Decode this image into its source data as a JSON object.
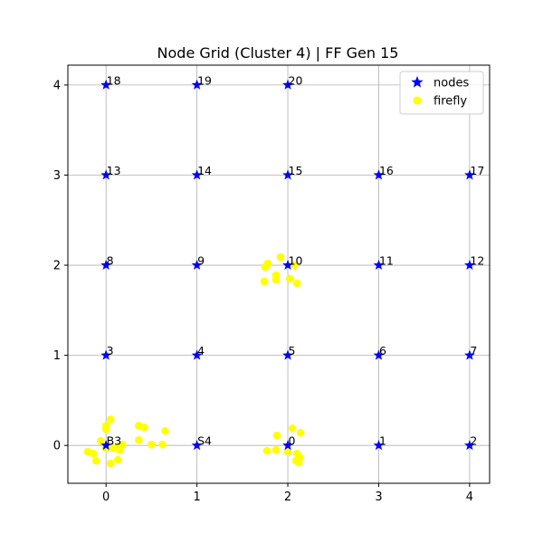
{
  "chart_data": {
    "type": "scatter",
    "title": "Node Grid (Cluster 4) | FF Gen 15",
    "xlabel": "",
    "ylabel": "",
    "xlim": [
      -0.42,
      4.22
    ],
    "ylim": [
      -0.42,
      4.22
    ],
    "x_ticks": [
      0,
      1,
      2,
      3,
      4
    ],
    "y_ticks": [
      0,
      1,
      2,
      3,
      4
    ],
    "grid": true,
    "legend": {
      "placement": "top-right",
      "entries": [
        {
          "name": "nodes",
          "color": "#0000ff",
          "marker": "star"
        },
        {
          "name": "firefly",
          "color": "#ffff00",
          "marker": "circle"
        }
      ]
    },
    "nodes": [
      {
        "label": "B3",
        "x": 0,
        "y": 0
      },
      {
        "label": "S4",
        "x": 1,
        "y": 0
      },
      {
        "label": "0",
        "x": 2,
        "y": 0
      },
      {
        "label": "1",
        "x": 3,
        "y": 0
      },
      {
        "label": "2",
        "x": 4,
        "y": 0
      },
      {
        "label": "3",
        "x": 0,
        "y": 1
      },
      {
        "label": "4",
        "x": 1,
        "y": 1
      },
      {
        "label": "5",
        "x": 2,
        "y": 1
      },
      {
        "label": "6",
        "x": 3,
        "y": 1
      },
      {
        "label": "7",
        "x": 4,
        "y": 1
      },
      {
        "label": "8",
        "x": 0,
        "y": 2
      },
      {
        "label": "9",
        "x": 1,
        "y": 2
      },
      {
        "label": "10",
        "x": 2,
        "y": 2
      },
      {
        "label": "11",
        "x": 3,
        "y": 2
      },
      {
        "label": "12",
        "x": 4,
        "y": 2
      },
      {
        "label": "13",
        "x": 0,
        "y": 3
      },
      {
        "label": "14",
        "x": 1,
        "y": 3
      },
      {
        "label": "15",
        "x": 2,
        "y": 3
      },
      {
        "label": "16",
        "x": 3,
        "y": 3
      },
      {
        "label": "17",
        "x": 4,
        "y": 3
      },
      {
        "label": "18",
        "x": 0,
        "y": 4
      },
      {
        "label": "19",
        "x": 1,
        "y": 4
      },
      {
        "label": "20",
        "x": 2,
        "y": 4
      }
    ],
    "series": [
      {
        "name": "firefly",
        "color": "#ffff00",
        "points": [
          [
            -0.2,
            -0.07
          ],
          [
            -0.14,
            -0.09
          ],
          [
            -0.11,
            -0.17
          ],
          [
            -0.06,
            0.05
          ],
          [
            0.0,
            0.22
          ],
          [
            0.0,
            0.18
          ],
          [
            0.05,
            0.29
          ],
          [
            0.05,
            -0.2
          ],
          [
            0.0,
            -0.03
          ],
          [
            0.08,
            -0.03
          ],
          [
            0.12,
            -0.02
          ],
          [
            0.15,
            -0.05
          ],
          [
            0.18,
            0.01
          ],
          [
            0.13,
            -0.16
          ],
          [
            0.36,
            0.22
          ],
          [
            0.42,
            0.2
          ],
          [
            0.36,
            0.06
          ],
          [
            0.5,
            0.01
          ],
          [
            0.62,
            0.01
          ],
          [
            0.65,
            0.16
          ],
          [
            1.75,
            1.98
          ],
          [
            1.78,
            2.02
          ],
          [
            1.74,
            1.82
          ],
          [
            1.87,
            1.89
          ],
          [
            1.87,
            1.84
          ],
          [
            1.92,
            2.09
          ],
          [
            2.02,
            1.85
          ],
          [
            2.1,
            1.8
          ],
          [
            2.07,
            2.0
          ],
          [
            1.77,
            -0.06
          ],
          [
            1.87,
            -0.05
          ],
          [
            1.88,
            0.11
          ],
          [
            2.0,
            -0.07
          ],
          [
            2.05,
            0.19
          ],
          [
            2.14,
            0.14
          ],
          [
            2.1,
            -0.09
          ],
          [
            2.13,
            -0.13
          ],
          [
            2.09,
            -0.17
          ],
          [
            2.12,
            -0.19
          ]
        ]
      }
    ]
  }
}
